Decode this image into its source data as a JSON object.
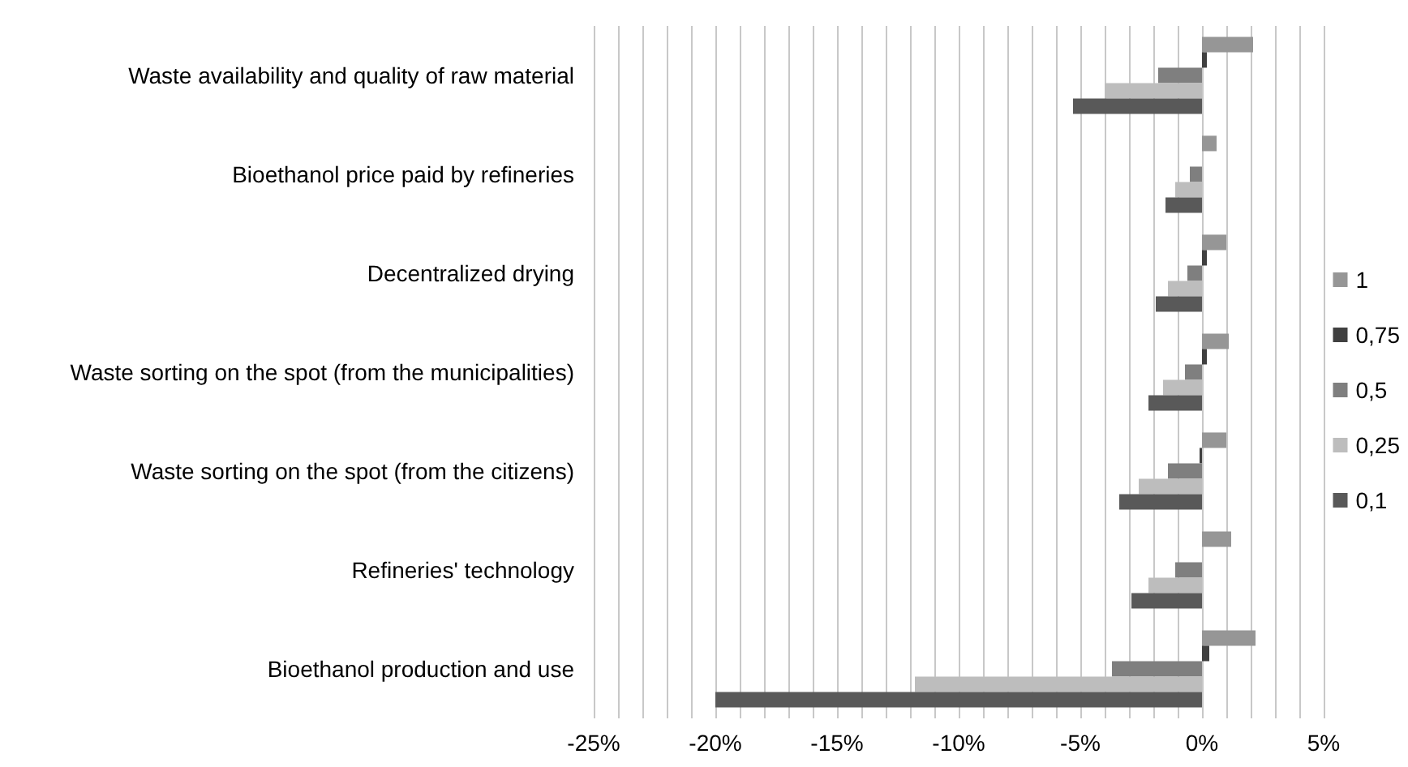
{
  "chart_data": {
    "type": "bar",
    "orientation": "horizontal",
    "categories": [
      "Waste availability and quality of raw material",
      "Bioethanol price paid by refineries",
      "Decentralized drying",
      "Waste sorting on the spot (from the municipalities)",
      "Waste sorting on the spot (from the citizens)",
      "Refineries' technology",
      "Bioethanol production and use"
    ],
    "series": [
      {
        "name": "1",
        "color": "#969696",
        "values": [
          2.1,
          0.6,
          1.0,
          1.1,
          1.0,
          1.2,
          2.2
        ]
      },
      {
        "name": "0,75",
        "color": "#404040",
        "values": [
          0.2,
          0,
          0.2,
          0.2,
          -0.1,
          0,
          0.3
        ]
      },
      {
        "name": "0,5",
        "color": "#7f7f7f",
        "values": [
          -1.8,
          -0.5,
          -0.6,
          -0.7,
          -1.4,
          -1.1,
          -3.7
        ]
      },
      {
        "name": "0,25",
        "color": "#bdbdbd",
        "values": [
          -4.0,
          -1.1,
          -1.4,
          -1.6,
          -2.6,
          -2.2,
          -11.8
        ]
      },
      {
        "name": "0,1",
        "color": "#595959",
        "values": [
          -5.3,
          -1.5,
          -1.9,
          -2.2,
          -3.4,
          -2.9,
          -20.0
        ]
      }
    ],
    "xlim": [
      -25,
      5
    ],
    "xticks": [
      {
        "value": -25,
        "label": "-25%"
      },
      {
        "value": -24,
        "label": null
      },
      {
        "value": -23,
        "label": null
      },
      {
        "value": -22,
        "label": null
      },
      {
        "value": -21,
        "label": null
      },
      {
        "value": -20,
        "label": "-20%"
      },
      {
        "value": -19,
        "label": null
      },
      {
        "value": -18,
        "label": null
      },
      {
        "value": -17,
        "label": null
      },
      {
        "value": -16,
        "label": null
      },
      {
        "value": -15,
        "label": "-15%"
      },
      {
        "value": -14,
        "label": null
      },
      {
        "value": -13,
        "label": null
      },
      {
        "value": -12,
        "label": null
      },
      {
        "value": -11,
        "label": null
      },
      {
        "value": -10,
        "label": "-10%"
      },
      {
        "value": -9,
        "label": null
      },
      {
        "value": -8,
        "label": null
      },
      {
        "value": -7,
        "label": null
      },
      {
        "value": -6,
        "label": null
      },
      {
        "value": -5,
        "label": "-5%"
      },
      {
        "value": -4,
        "label": null
      },
      {
        "value": -3,
        "label": null
      },
      {
        "value": -2,
        "label": null
      },
      {
        "value": -1,
        "label": null
      },
      {
        "value": 0,
        "label": "0%"
      },
      {
        "value": 1,
        "label": null
      },
      {
        "value": 2,
        "label": null
      },
      {
        "value": 3,
        "label": null
      },
      {
        "value": 4,
        "label": null
      },
      {
        "value": 5,
        "label": "5%"
      }
    ],
    "grid": "x",
    "legend": "right"
  }
}
